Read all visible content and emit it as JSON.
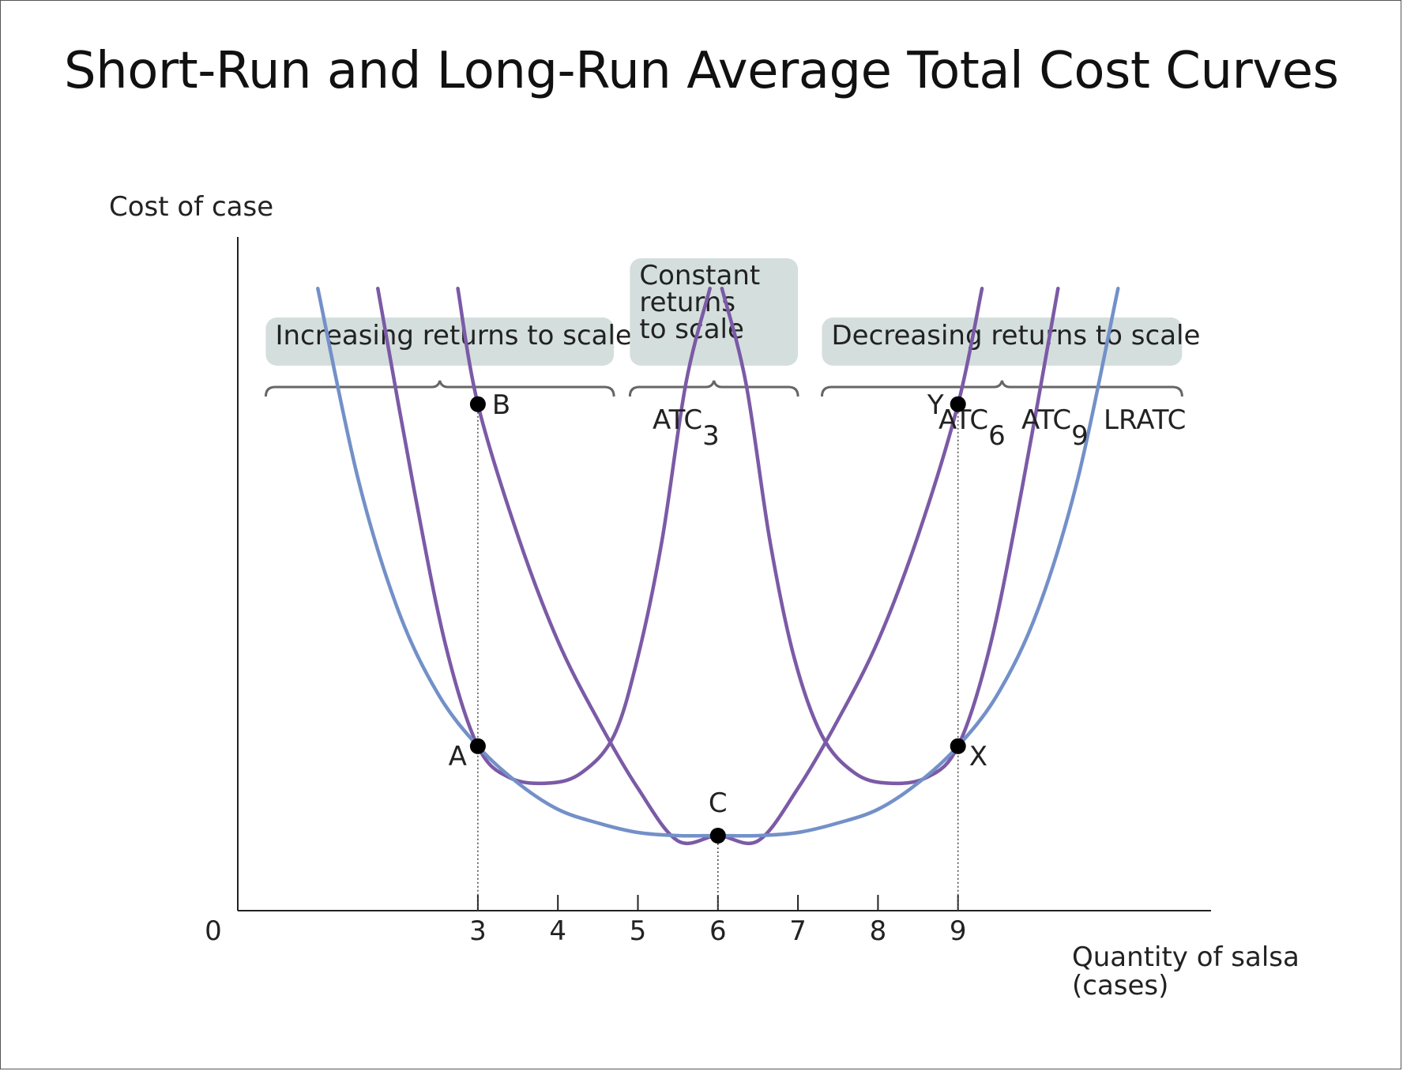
{
  "page": {
    "title": "Short-Run and Long-Run Average Total Cost Curves"
  },
  "chart_data": {
    "type": "line",
    "title": "Short-Run and Long-Run Average Total Cost Curves",
    "ylabel": "Cost of case",
    "xlabel_lines": [
      "Quantity of salsa",
      "(cases)"
    ],
    "origin_label": "0",
    "x_ticks": [
      3,
      4,
      5,
      6,
      7,
      8,
      9
    ],
    "xlim": [
      0,
      12.3
    ],
    "ylim": [
      0,
      10
    ],
    "grid": false,
    "regions": [
      {
        "label_lines": [
          "Increasing returns to scale"
        ],
        "x_from": 0.35,
        "x_to": 4.7
      },
      {
        "label_lines": [
          "Constant",
          "returns",
          "to scale"
        ],
        "x_from": 4.9,
        "x_to": 7.0
      },
      {
        "label_lines": [
          "Decreasing returns to scale"
        ],
        "x_from": 7.3,
        "x_to": 11.8
      }
    ],
    "series": [
      {
        "name": "ATC3",
        "label_main": "ATC",
        "label_sub": "3",
        "color": "#7b5aa6",
        "min_x": 3.9,
        "min_y": 1.1,
        "x": [
          1.75,
          2.2,
          2.6,
          3.0,
          3.4,
          3.9,
          4.3,
          4.7,
          5.0,
          5.3,
          5.6,
          5.9
        ],
        "y": [
          5.8,
          3.9,
          2.4,
          1.45,
          1.15,
          1.1,
          1.2,
          1.55,
          2.3,
          3.4,
          4.9,
          5.8
        ]
      },
      {
        "name": "ATC6",
        "label_main": "ATC",
        "label_sub": "6",
        "color": "#7b5aa6",
        "x": [
          2.75,
          3.0,
          3.5,
          4.0,
          4.5,
          5.0,
          5.5,
          6.0,
          6.5,
          7.0,
          7.5,
          8.0,
          8.5,
          9.0,
          9.3
        ],
        "y": [
          5.8,
          4.7,
          3.45,
          2.45,
          1.7,
          1.05,
          0.55,
          0.6,
          0.55,
          1.05,
          1.7,
          2.45,
          3.45,
          4.7,
          5.8
        ]
      },
      {
        "name": "ATC9",
        "label_main": "ATC",
        "label_sub": "9",
        "color": "#7b5aa6",
        "min_x": 8.1,
        "min_y": 1.1,
        "x": [
          6.05,
          6.35,
          6.65,
          6.95,
          7.3,
          7.7,
          8.1,
          8.6,
          9.0,
          9.4,
          9.8,
          10.25
        ],
        "y": [
          5.8,
          4.9,
          3.4,
          2.3,
          1.55,
          1.2,
          1.1,
          1.15,
          1.45,
          2.4,
          3.9,
          5.8
        ]
      },
      {
        "name": "LRATC",
        "label_main": "LRATC",
        "label_sub": "",
        "color": "#7390c8",
        "x": [
          1.0,
          1.5,
          2.0,
          2.5,
          3.0,
          3.5,
          4.0,
          4.5,
          5.0,
          5.5,
          6.0,
          6.5,
          7.0,
          7.5,
          8.0,
          8.5,
          9.0,
          9.5,
          10.0,
          10.5,
          11.0
        ],
        "y": [
          5.8,
          4.0,
          2.75,
          1.95,
          1.45,
          1.1,
          0.85,
          0.72,
          0.63,
          0.6,
          0.6,
          0.6,
          0.63,
          0.72,
          0.85,
          1.1,
          1.45,
          1.95,
          2.75,
          4.0,
          5.8
        ]
      }
    ],
    "points": [
      {
        "label": "A",
        "x": 3,
        "y": 1.45,
        "label_side": "left-below"
      },
      {
        "label": "B",
        "x": 3,
        "y": 4.7,
        "label_side": "right"
      },
      {
        "label": "C",
        "x": 6,
        "y": 0.6,
        "label_side": "above"
      },
      {
        "label": "X",
        "x": 9,
        "y": 1.45,
        "label_side": "right-below"
      },
      {
        "label": "Y",
        "x": 9,
        "y": 4.7,
        "label_side": "left"
      }
    ],
    "dotted_guides": [
      {
        "x": 3,
        "from_point": "B"
      },
      {
        "x": 6,
        "from_point": "C"
      },
      {
        "x": 9,
        "from_point": "Y"
      }
    ]
  }
}
